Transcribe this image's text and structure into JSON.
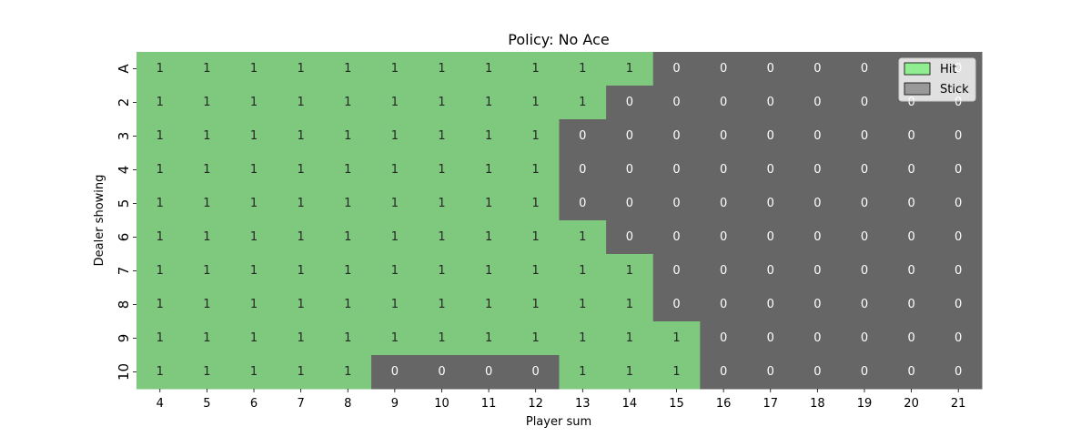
{
  "colors": {
    "hit": "#7fc97f",
    "stick": "#666666",
    "hit_legend": "#90ee90",
    "stick_legend": "#999999"
  },
  "chart_data": {
    "type": "heatmap",
    "title": "Policy: No Ace",
    "xlabel": "Player sum",
    "ylabel": "Dealer showing",
    "x_labels": [
      "4",
      "5",
      "6",
      "7",
      "8",
      "9",
      "10",
      "11",
      "12",
      "13",
      "14",
      "15",
      "16",
      "17",
      "18",
      "19",
      "20",
      "21"
    ],
    "y_labels": [
      "A",
      "2",
      "3",
      "4",
      "5",
      "6",
      "7",
      "8",
      "9",
      "10"
    ],
    "values": [
      [
        1,
        1,
        1,
        1,
        1,
        1,
        1,
        1,
        1,
        1,
        1,
        0,
        0,
        0,
        0,
        0,
        0,
        0
      ],
      [
        1,
        1,
        1,
        1,
        1,
        1,
        1,
        1,
        1,
        1,
        0,
        0,
        0,
        0,
        0,
        0,
        0,
        0
      ],
      [
        1,
        1,
        1,
        1,
        1,
        1,
        1,
        1,
        1,
        0,
        0,
        0,
        0,
        0,
        0,
        0,
        0,
        0
      ],
      [
        1,
        1,
        1,
        1,
        1,
        1,
        1,
        1,
        1,
        0,
        0,
        0,
        0,
        0,
        0,
        0,
        0,
        0
      ],
      [
        1,
        1,
        1,
        1,
        1,
        1,
        1,
        1,
        1,
        0,
        0,
        0,
        0,
        0,
        0,
        0,
        0,
        0
      ],
      [
        1,
        1,
        1,
        1,
        1,
        1,
        1,
        1,
        1,
        1,
        0,
        0,
        0,
        0,
        0,
        0,
        0,
        0
      ],
      [
        1,
        1,
        1,
        1,
        1,
        1,
        1,
        1,
        1,
        1,
        1,
        0,
        0,
        0,
        0,
        0,
        0,
        0
      ],
      [
        1,
        1,
        1,
        1,
        1,
        1,
        1,
        1,
        1,
        1,
        1,
        0,
        0,
        0,
        0,
        0,
        0,
        0
      ],
      [
        1,
        1,
        1,
        1,
        1,
        1,
        1,
        1,
        1,
        1,
        1,
        1,
        0,
        0,
        0,
        0,
        0,
        0
      ],
      [
        1,
        1,
        1,
        1,
        1,
        0,
        0,
        0,
        0,
        1,
        1,
        1,
        0,
        0,
        0,
        0,
        0,
        0
      ]
    ],
    "legend": [
      {
        "label": "Hit",
        "value": 1
      },
      {
        "label": "Stick",
        "value": 0
      }
    ],
    "legend_position": "top-right"
  }
}
